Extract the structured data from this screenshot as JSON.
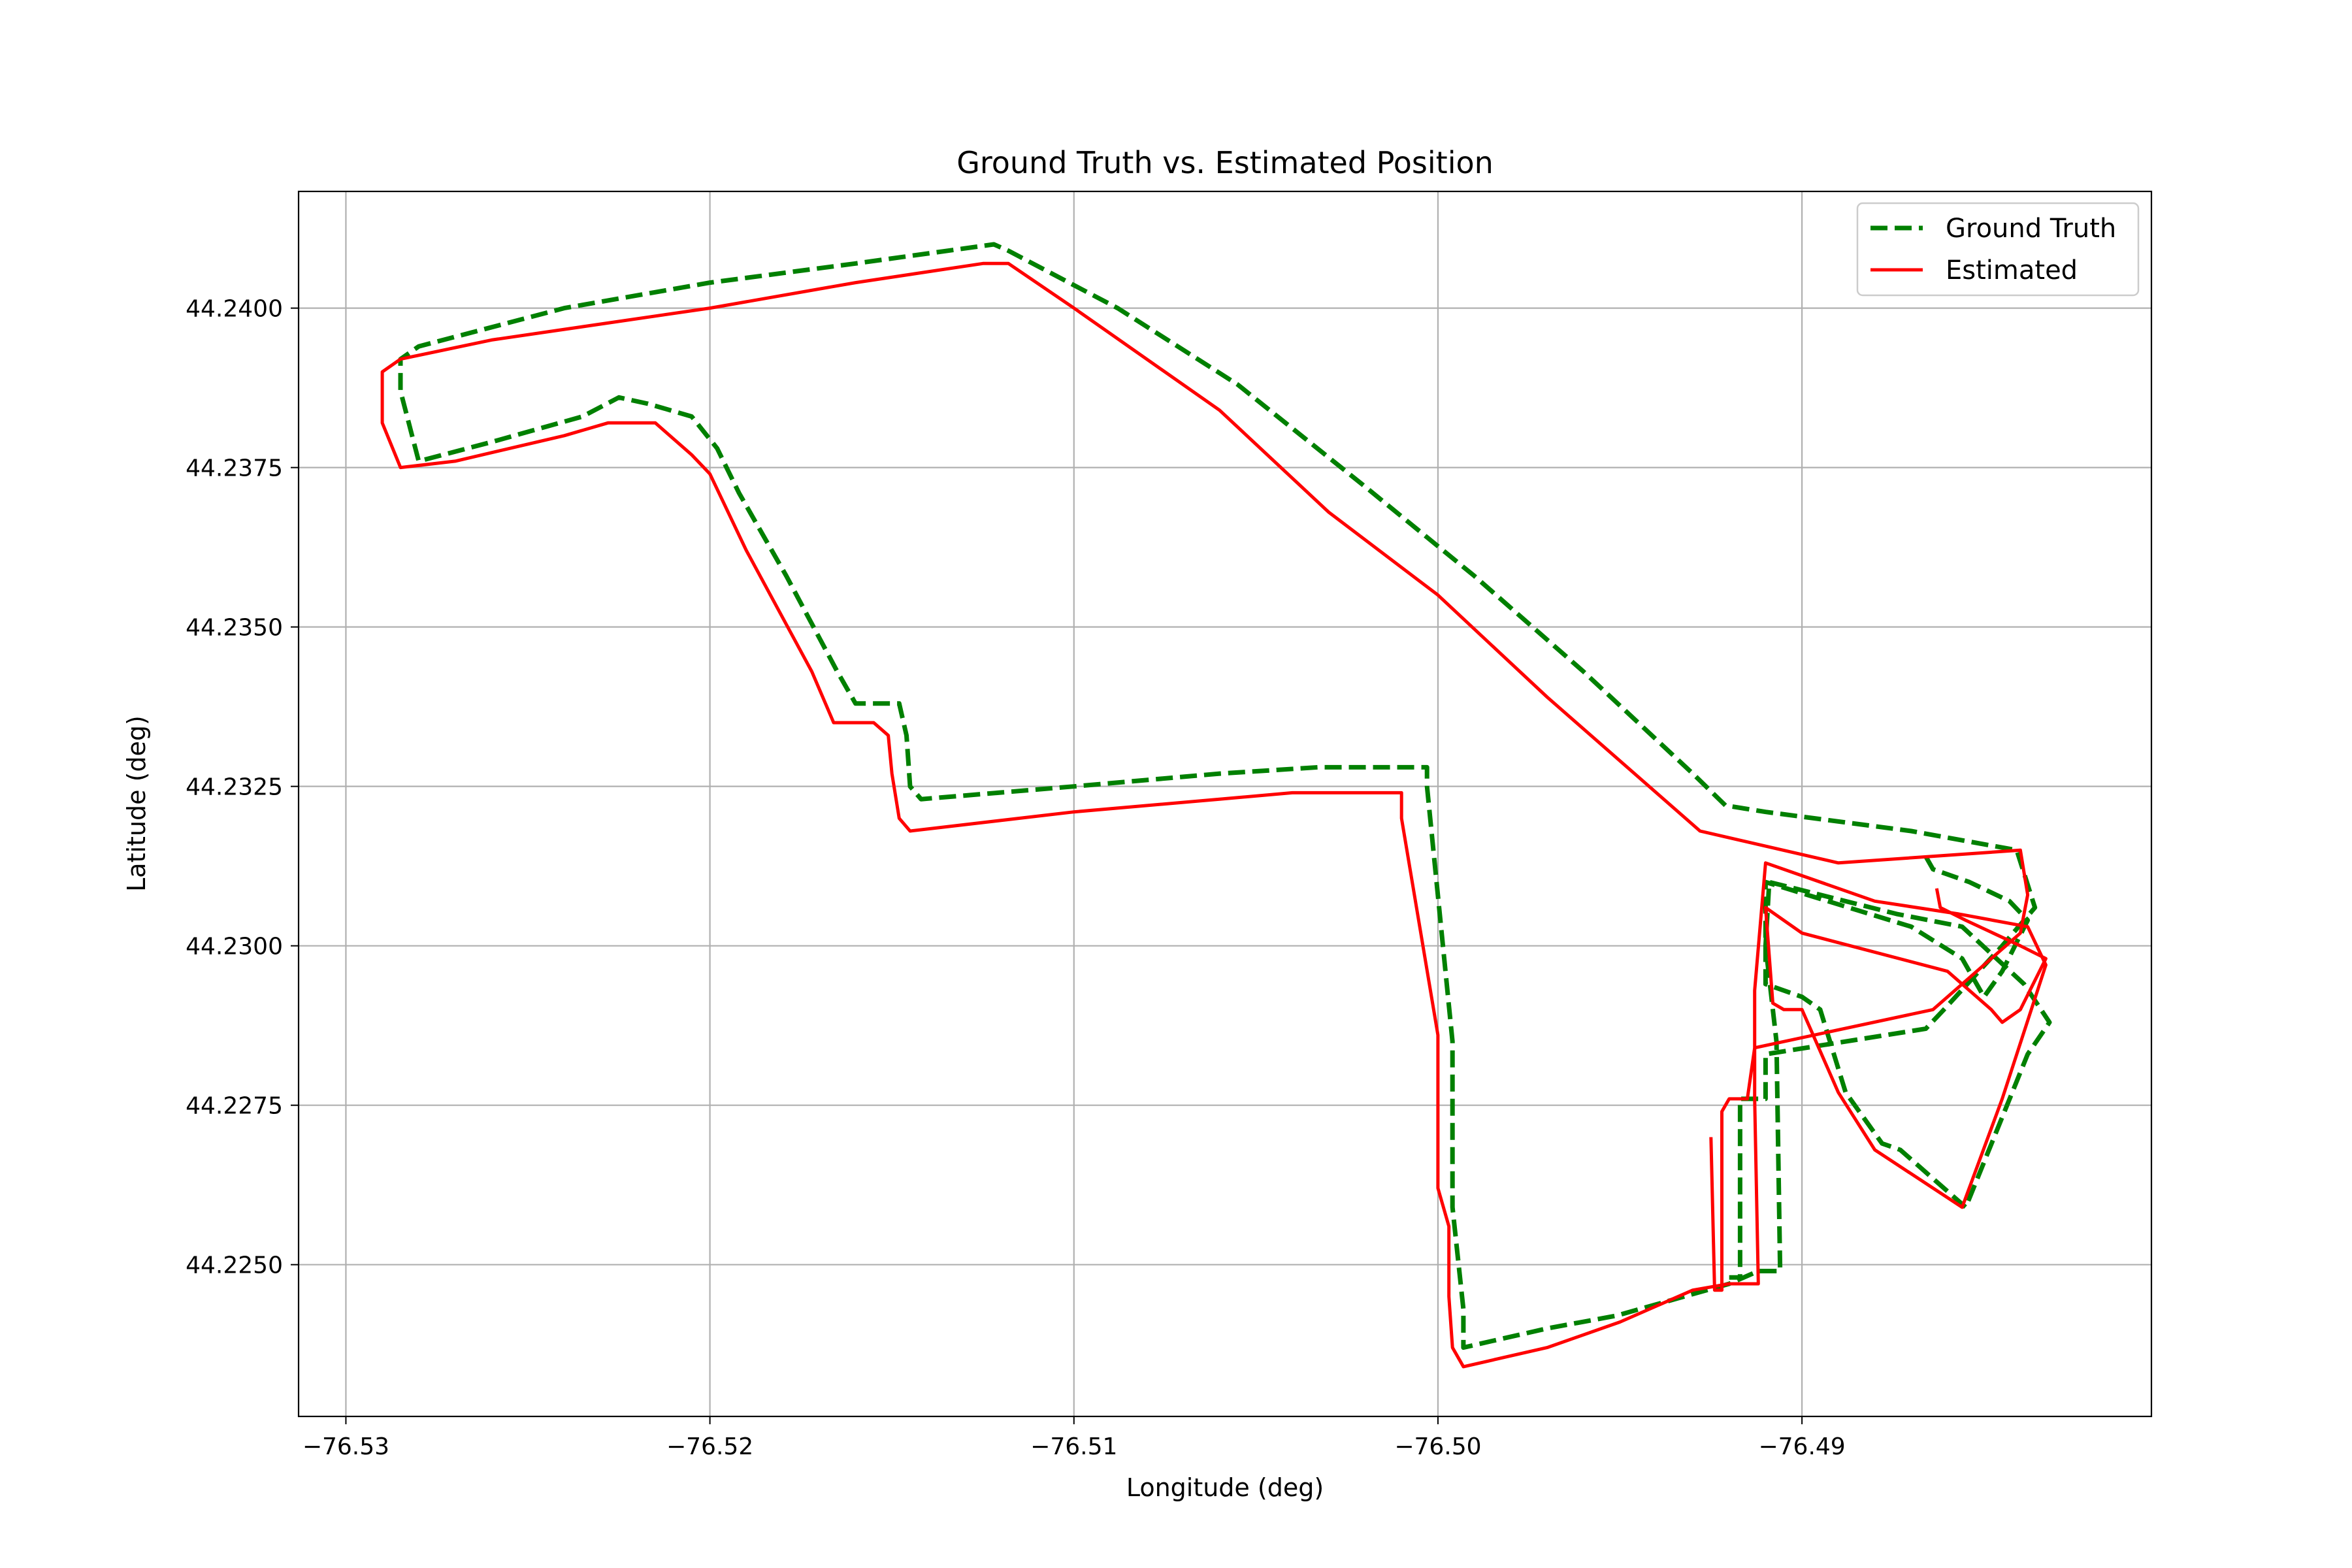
{
  "chart_data": {
    "type": "line",
    "title": "Ground Truth vs. Estimated Position",
    "xlabel": "Longitude (deg)",
    "ylabel": "Latitude (deg)",
    "xlim": [
      -76.5313,
      -76.4804
    ],
    "ylim": [
      44.22262,
      44.24183
    ],
    "x_ticks": [
      -76.53,
      -76.52,
      -76.51,
      -76.5,
      -76.49
    ],
    "x_tick_labels": [
      "−76.53",
      "−76.52",
      "−76.51",
      "−76.50",
      "−76.49"
    ],
    "y_ticks": [
      44.225,
      44.2275,
      44.23,
      44.2325,
      44.235,
      44.2375,
      44.24
    ],
    "y_tick_labels": [
      "44.2250",
      "44.2275",
      "44.2300",
      "44.2325",
      "44.2350",
      "44.2375",
      "44.2400"
    ],
    "grid": true,
    "legend_position": "top-right",
    "series": [
      {
        "name": "Ground Truth",
        "color": "#008000",
        "style": "dashed",
        "points": [
          [
            -76.4866,
            44.2314
          ],
          [
            -76.4864,
            44.2312
          ],
          [
            -76.4854,
            44.231
          ],
          [
            -76.4843,
            44.2307
          ],
          [
            -76.4838,
            44.2304
          ],
          [
            -76.4845,
            44.2296
          ],
          [
            -76.485,
            44.2292
          ],
          [
            -76.4856,
            44.2298
          ],
          [
            -76.487,
            44.2303
          ],
          [
            -76.491,
            44.231
          ],
          [
            -76.491,
            44.2294
          ],
          [
            -76.49,
            44.2292
          ],
          [
            -76.4895,
            44.229
          ],
          [
            -76.4888,
            44.2277
          ],
          [
            -76.4878,
            44.2269
          ],
          [
            -76.4873,
            44.2268
          ],
          [
            -76.4855,
            44.2259
          ],
          [
            -76.4838,
            44.2283
          ],
          [
            -76.4832,
            44.2288
          ],
          [
            -76.4839,
            44.2294
          ],
          [
            -76.4856,
            44.2303
          ],
          [
            -76.4874,
            44.2305
          ],
          [
            -76.4909,
            44.231
          ],
          [
            -76.491,
            44.23
          ],
          [
            -76.4907,
            44.2285
          ],
          [
            -76.4906,
            44.2249
          ],
          [
            -76.4912,
            44.2249
          ],
          [
            -76.492,
            44.2247
          ],
          [
            -76.4951,
            44.2242
          ],
          [
            -76.497,
            44.224
          ],
          [
            -76.4993,
            44.2237
          ],
          [
            -76.4993,
            44.2243
          ],
          [
            -76.4996,
            44.2259
          ],
          [
            -76.4996,
            44.2285
          ],
          [
            -76.5003,
            44.2325
          ],
          [
            -76.5003,
            44.2328
          ],
          [
            -76.5033,
            44.2328
          ],
          [
            -76.506,
            44.2327
          ],
          [
            -76.51,
            44.2325
          ],
          [
            -76.5142,
            44.2323
          ],
          [
            -76.5145,
            44.2325
          ],
          [
            -76.5146,
            44.2333
          ],
          [
            -76.5148,
            44.2338
          ],
          [
            -76.516,
            44.2338
          ],
          [
            -76.5165,
            44.2343
          ],
          [
            -76.5179,
            44.2358
          ],
          [
            -76.5192,
            44.2371
          ],
          [
            -76.5198,
            44.2378
          ],
          [
            -76.5205,
            44.2383
          ],
          [
            -76.5217,
            44.2385
          ],
          [
            -76.5225,
            44.2386
          ],
          [
            -76.5235,
            44.2383
          ],
          [
            -76.526,
            44.2379
          ],
          [
            -76.528,
            44.2376
          ],
          [
            -76.5285,
            44.2387
          ],
          [
            -76.5285,
            44.2392
          ],
          [
            -76.528,
            44.2394
          ],
          [
            -76.524,
            44.24
          ],
          [
            -76.52,
            44.2404
          ],
          [
            -76.516,
            44.2407
          ],
          [
            -76.5122,
            44.241
          ],
          [
            -76.5118,
            44.2409
          ],
          [
            -76.5088,
            44.24
          ],
          [
            -76.5055,
            44.2388
          ],
          [
            -76.502,
            44.2372
          ],
          [
            -76.499,
            44.2358
          ],
          [
            -76.496,
            44.2343
          ],
          [
            -76.493,
            44.2327
          ],
          [
            -76.4921,
            44.2322
          ],
          [
            -76.491,
            44.2321
          ],
          [
            -76.487,
            44.2318
          ],
          [
            -76.4841,
            44.2315
          ],
          [
            -76.4836,
            44.2306
          ],
          [
            -76.4845,
            44.23
          ],
          [
            -76.4861,
            44.229
          ],
          [
            -76.4866,
            44.2287
          ],
          [
            -76.491,
            44.2283
          ],
          [
            -76.491,
            44.2276
          ],
          [
            -76.4917,
            44.2276
          ],
          [
            -76.4917,
            44.2274
          ],
          [
            -76.4917,
            44.2248
          ],
          [
            -76.492,
            44.2248
          ]
        ]
      },
      {
        "name": "Estimated",
        "color": "#ff0000",
        "style": "solid",
        "points": [
          [
            -76.4863,
            44.2309
          ],
          [
            -76.4862,
            44.2306
          ],
          [
            -76.4855,
            44.2304
          ],
          [
            -76.484,
            44.23
          ],
          [
            -76.4833,
            44.2298
          ],
          [
            -76.484,
            44.229
          ],
          [
            -76.4845,
            44.2288
          ],
          [
            -76.4848,
            44.229
          ],
          [
            -76.486,
            44.2296
          ],
          [
            -76.49,
            44.2302
          ],
          [
            -76.491,
            44.2306
          ],
          [
            -76.4908,
            44.2291
          ],
          [
            -76.4905,
            44.229
          ],
          [
            -76.49,
            44.229
          ],
          [
            -76.489,
            44.2277
          ],
          [
            -76.488,
            44.2268
          ],
          [
            -76.4856,
            44.2259
          ],
          [
            -76.4845,
            44.2276
          ],
          [
            -76.4833,
            44.2297
          ],
          [
            -76.4838,
            44.2303
          ],
          [
            -76.4857,
            44.2305
          ],
          [
            -76.488,
            44.2307
          ],
          [
            -76.491,
            44.2313
          ],
          [
            -76.4913,
            44.2293
          ],
          [
            -76.4913,
            44.2276
          ],
          [
            -76.4912,
            44.2247
          ],
          [
            -76.492,
            44.2247
          ],
          [
            -76.493,
            44.2246
          ],
          [
            -76.495,
            44.2241
          ],
          [
            -76.497,
            44.2237
          ],
          [
            -76.4993,
            44.2234
          ],
          [
            -76.4996,
            44.2237
          ],
          [
            -76.4997,
            44.2245
          ],
          [
            -76.4997,
            44.2256
          ],
          [
            -76.5,
            44.2262
          ],
          [
            -76.5,
            44.2286
          ],
          [
            -76.501,
            44.232
          ],
          [
            -76.501,
            44.2324
          ],
          [
            -76.504,
            44.2324
          ],
          [
            -76.506,
            44.2323
          ],
          [
            -76.51,
            44.2321
          ],
          [
            -76.5145,
            44.2318
          ],
          [
            -76.5148,
            44.232
          ],
          [
            -76.515,
            44.2327
          ],
          [
            -76.5151,
            44.2333
          ],
          [
            -76.5155,
            44.2335
          ],
          [
            -76.5166,
            44.2335
          ],
          [
            -76.5172,
            44.2343
          ],
          [
            -76.519,
            44.2362
          ],
          [
            -76.52,
            44.2374
          ],
          [
            -76.5205,
            44.2377
          ],
          [
            -76.5215,
            44.2382
          ],
          [
            -76.5228,
            44.2382
          ],
          [
            -76.524,
            44.238
          ],
          [
            -76.527,
            44.2376
          ],
          [
            -76.5285,
            44.2375
          ],
          [
            -76.529,
            44.2382
          ],
          [
            -76.529,
            44.239
          ],
          [
            -76.5285,
            44.2392
          ],
          [
            -76.526,
            44.2395
          ],
          [
            -76.52,
            44.24
          ],
          [
            -76.516,
            44.2404
          ],
          [
            -76.5125,
            44.2407
          ],
          [
            -76.5118,
            44.2407
          ],
          [
            -76.51,
            44.24
          ],
          [
            -76.506,
            44.2384
          ],
          [
            -76.503,
            44.2368
          ],
          [
            -76.5,
            44.2355
          ],
          [
            -76.497,
            44.2339
          ],
          [
            -76.493,
            44.2319
          ],
          [
            -76.4928,
            44.2318
          ],
          [
            -76.489,
            44.2313
          ],
          [
            -76.484,
            44.2315
          ],
          [
            -76.4838,
            44.2308
          ],
          [
            -76.484,
            44.2302
          ],
          [
            -76.4848,
            44.2298
          ],
          [
            -76.4864,
            44.229
          ],
          [
            -76.4913,
            44.2284
          ],
          [
            -76.4915,
            44.2276
          ],
          [
            -76.492,
            44.2276
          ],
          [
            -76.4922,
            44.2274
          ],
          [
            -76.4922,
            44.2246
          ],
          [
            -76.4924,
            44.2246
          ],
          [
            -76.4925,
            44.227
          ]
        ]
      }
    ]
  }
}
